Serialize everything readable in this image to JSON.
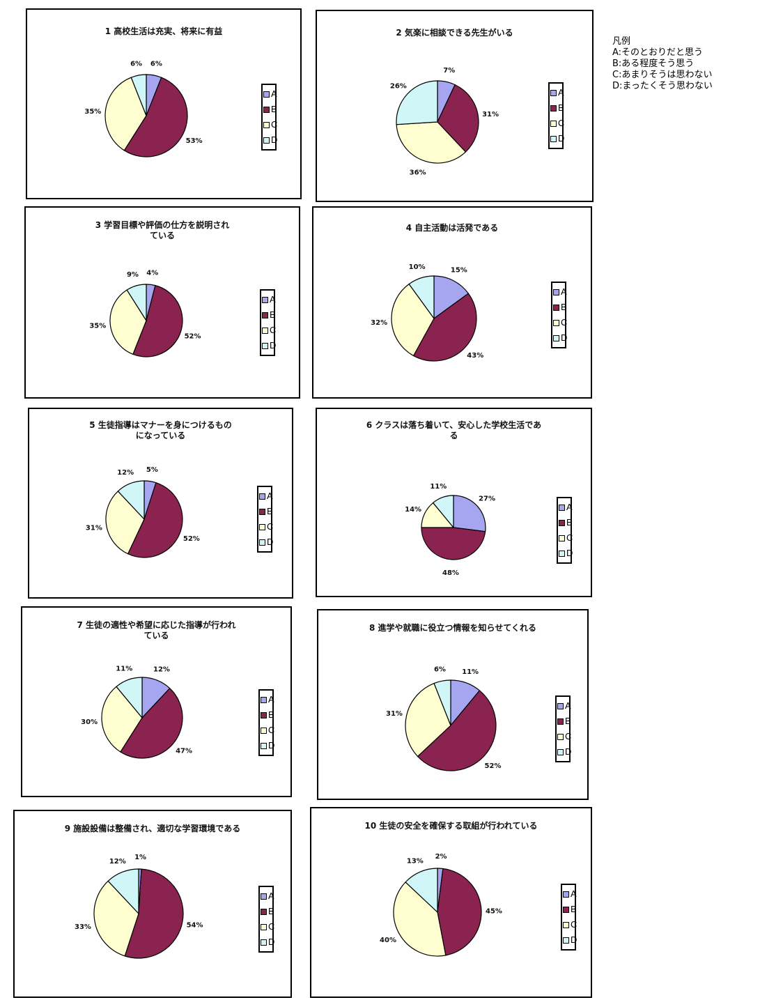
{
  "key": {
    "title": "凡例",
    "items": [
      "A:そのとおりだと思う",
      "B:ある程度そう思う",
      "C:あまりそうは思わない",
      "D:まったくそう思わない"
    ]
  },
  "legend_labels": [
    "A",
    "B",
    "C",
    "D"
  ],
  "colors": {
    "A": "#a5a5f0",
    "B": "#8a2350",
    "C": "#fefed0",
    "D": "#d0f6f8"
  },
  "chart_data": [
    {
      "type": "pie",
      "title": "1 高校生活は充実、将来に有益",
      "categories": [
        "A",
        "B",
        "C",
        "D"
      ],
      "values": [
        6,
        53,
        35,
        6
      ],
      "labels": [
        "6%",
        "53%",
        "35%",
        "6%"
      ]
    },
    {
      "type": "pie",
      "title": "2 気楽に相談できる先生がいる",
      "categories": [
        "A",
        "B",
        "C",
        "D"
      ],
      "values": [
        7,
        31,
        36,
        26
      ],
      "labels": [
        "7%",
        "31%",
        "36%",
        "26%"
      ]
    },
    {
      "type": "pie",
      "title": "3 学習目標や評価の仕方を説明され\nている",
      "categories": [
        "A",
        "B",
        "C",
        "D"
      ],
      "values": [
        4,
        52,
        35,
        9
      ],
      "labels": [
        "4%",
        "52%",
        "35%",
        "9%"
      ]
    },
    {
      "type": "pie",
      "title": "4 自主活動は活発である",
      "categories": [
        "A",
        "B",
        "C",
        "D"
      ],
      "values": [
        15,
        43,
        32,
        10
      ],
      "labels": [
        "15%",
        "43%",
        "32%",
        "10%"
      ]
    },
    {
      "type": "pie",
      "title": "5 生徒指導はマナーを身につけるもの\nになっている",
      "categories": [
        "A",
        "B",
        "C",
        "D"
      ],
      "values": [
        5,
        52,
        31,
        12
      ],
      "labels": [
        "5%",
        "52%",
        "31%",
        "12%"
      ]
    },
    {
      "type": "pie",
      "title": "6 クラスは落ち着いて、安心した学校生活であ\nる",
      "categories": [
        "A",
        "B",
        "C",
        "D"
      ],
      "values": [
        27,
        48,
        14,
        11
      ],
      "labels": [
        "27%",
        "48%",
        "14%",
        "11%"
      ]
    },
    {
      "type": "pie",
      "title": "7 生徒の適性や希望に応じた指導が行われ\nている",
      "categories": [
        "A",
        "B",
        "C",
        "D"
      ],
      "values": [
        12,
        47,
        30,
        11
      ],
      "labels": [
        "12%",
        "47%",
        "30%",
        "11%"
      ]
    },
    {
      "type": "pie",
      "title": "8 進学や就職に役立つ情報を知らせてくれる",
      "categories": [
        "A",
        "B",
        "C",
        "D"
      ],
      "values": [
        11,
        52,
        31,
        6
      ],
      "labels": [
        "11%",
        "52%",
        "31%",
        "6%"
      ]
    },
    {
      "type": "pie",
      "title": "9 施設設備は整備され、適切な学習環境である",
      "categories": [
        "A",
        "B",
        "C",
        "D"
      ],
      "values": [
        1,
        54,
        33,
        12
      ],
      "labels": [
        "1%",
        "54%",
        "33%",
        "12%"
      ]
    },
    {
      "type": "pie",
      "title": "10 生徒の安全を確保する取組が行われている",
      "categories": [
        "A",
        "B",
        "C",
        "D"
      ],
      "values": [
        2,
        45,
        40,
        13
      ],
      "labels": [
        "2%",
        "45%",
        "40%",
        "13%"
      ]
    }
  ]
}
